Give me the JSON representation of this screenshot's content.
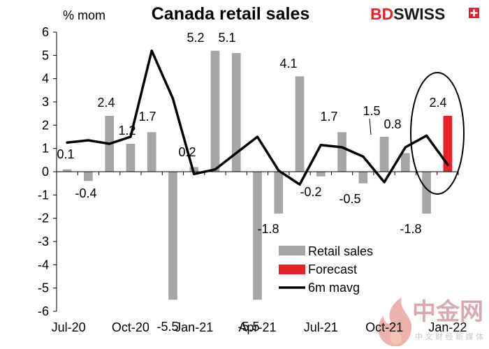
{
  "chart_data": {
    "type": "bar",
    "title": "Canada retail sales",
    "ylabel": "% mom",
    "ylim": [
      -6,
      6
    ],
    "yticks": [
      -6,
      -5,
      -4,
      -3,
      -2,
      -1,
      0,
      1,
      2,
      3,
      4,
      5,
      6
    ],
    "xtick_labels": [
      "Jul-20",
      "Oct-20",
      "Jan-21",
      "Apr-21",
      "Jul-21",
      "Oct-21",
      "Jan-22"
    ],
    "categories": [
      "Jul-20",
      "Aug-20",
      "Sep-20",
      "Oct-20",
      "Nov-20",
      "Dec-20",
      "Jan-21",
      "Feb-21",
      "Mar-21",
      "Apr-21",
      "May-21",
      "Jun-21",
      "Jul-21",
      "Aug-21",
      "Sep-21",
      "Oct-21",
      "Nov-21",
      "Dec-21",
      "Jan-22"
    ],
    "series": [
      {
        "name": "Retail sales",
        "type": "bar",
        "color": "#a6a6a6",
        "values": [
          0.1,
          -0.4,
          2.4,
          1.2,
          1.7,
          -5.5,
          0.2,
          5.2,
          5.1,
          -5.5,
          -1.8,
          4.1,
          -0.2,
          1.7,
          -0.5,
          1.5,
          0.8,
          -1.8,
          null
        ],
        "labels": [
          "0.1",
          "-0.4",
          "2.4",
          "1.2",
          "1.7",
          "-5.5",
          "0.2",
          "5.2",
          "5.1",
          "-5.5",
          "-1.8",
          "4.1",
          "-0.2",
          "1.7",
          "-0.5",
          "1.5",
          "0.8",
          "-1.8",
          ""
        ]
      },
      {
        "name": "Forecast",
        "type": "bar",
        "color": "#e8202a",
        "values": [
          null,
          null,
          null,
          null,
          null,
          null,
          null,
          null,
          null,
          null,
          null,
          null,
          null,
          null,
          null,
          null,
          null,
          null,
          2.4
        ],
        "labels": [
          "",
          "",
          "",
          "",
          "",
          "",
          "",
          "",
          "",
          "",
          "",
          "",
          "",
          "",
          "",
          "",
          "",
          "",
          "2.4"
        ]
      },
      {
        "name": "6m mavg",
        "type": "line",
        "color": "#000000",
        "values": [
          1.25,
          1.35,
          1.2,
          1.5,
          5.2,
          3.15,
          -0.1,
          0.1,
          0.8,
          1.5,
          0.05,
          -0.55,
          1.15,
          1.05,
          0.65,
          -0.45,
          1.05,
          1.55,
          0.3
        ]
      }
    ],
    "grid": false,
    "legend": "bottom-right",
    "annotations": [
      "ellipse around Jan-22 forecast bar"
    ]
  },
  "brand": {
    "logo_part1": "BD",
    "logo_part2": "SWISS",
    "logo_color": "#e8202a"
  },
  "watermark": {
    "main": "中金网",
    "sub": "中 文 财 经 新 媒 体"
  }
}
